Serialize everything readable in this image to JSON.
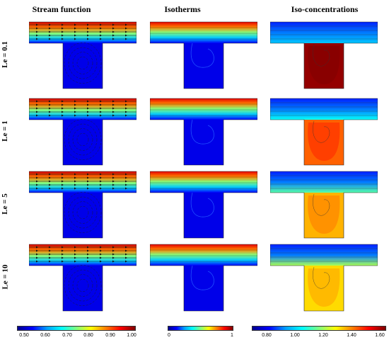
{
  "columns": [
    "Stream function",
    "Isotherms",
    "Iso-concentrations"
  ],
  "rows": [
    "Le = 0.1",
    "Le = 1",
    "Le = 5",
    "Le = 10"
  ],
  "stream_colorbar": {
    "min": 0.5,
    "max": 1.0,
    "ticks": [
      "0.50",
      "0.60",
      "0.70",
      "0.80",
      "0.90",
      "1.00"
    ]
  },
  "temp_colorbar": {
    "min": 0,
    "max": 1,
    "ticks": [
      "0",
      "1"
    ]
  },
  "conc_colorbar": {
    "min": 0.7,
    "max": 1.7,
    "ticks": [
      "0.80",
      "1.00",
      "1.20",
      "1.40",
      "1.60"
    ]
  },
  "colormap": [
    "#00008f",
    "#0000ff",
    "#00a0ff",
    "#00ffff",
    "#80ff80",
    "#ffff00",
    "#ff8000",
    "#ff0000",
    "#800000"
  ],
  "cavity_concentration": [
    1.68,
    1.48,
    1.4,
    1.36
  ]
}
